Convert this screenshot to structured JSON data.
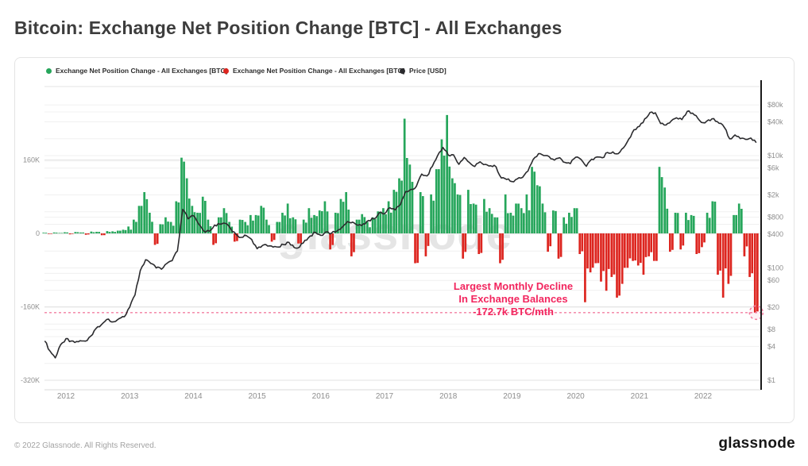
{
  "header": {
    "title": "Bitcoin: Exchange Net Position Change [BTC] - All Exchanges"
  },
  "legend": {
    "inflow_label": "Exchange Net Position Change - All Exchanges [BTC]",
    "outflow_label": "Exchange Net Position Change - All Exchanges [BTC]",
    "price_label": "Price [USD]",
    "inflow_color": "#26a65b",
    "outflow_color": "#dd251f",
    "price_color": "#2b2b2e"
  },
  "watermark": {
    "text": "glassnode"
  },
  "annotation": {
    "line1": "Largest Monthly Decline",
    "line2": "In Exchange Balances",
    "line3": "-172.7k BTC/mth",
    "color": "#f2255e",
    "dash_color": "#f37fa1",
    "highlight_value_k": -172.7
  },
  "footer": {
    "copyright": "© 2022 Glassnode. All Rights Reserved.",
    "logo_text": "glassnode"
  },
  "chart_data": {
    "type": "bar+line",
    "title": "Bitcoin: Exchange Net Position Change [BTC] - All Exchanges",
    "x_start": {
      "year": 2011,
      "month": 9
    },
    "resolution": "monthly",
    "x_axis": {
      "years": [
        2012,
        2013,
        2014,
        2015,
        2016,
        2017,
        2018,
        2019,
        2020,
        2021,
        2022
      ]
    },
    "left_axis": {
      "title": "Exchange Net Position Change [BTC]",
      "unit": "thousand BTC per month",
      "ticks": [
        {
          "label": "160K",
          "value": 160
        },
        {
          "label": "0",
          "value": 0
        },
        {
          "label": "-160K",
          "value": -160
        },
        {
          "label": "-320K",
          "value": -320
        }
      ],
      "grid_values_k": [
        320,
        160,
        0,
        -160,
        -320
      ]
    },
    "right_axis": {
      "title": "Price [USD]",
      "scale": "log",
      "ticks": [
        {
          "label": "$80k",
          "value": 80000
        },
        {
          "label": "$40k",
          "value": 40000
        },
        {
          "label": "$10k",
          "value": 10000
        },
        {
          "label": "$6k",
          "value": 6000
        },
        {
          "label": "$2k",
          "value": 2000
        },
        {
          "label": "$800",
          "value": 800
        },
        {
          "label": "$400",
          "value": 400
        },
        {
          "label": "$100",
          "value": 100
        },
        {
          "label": "$60",
          "value": 60
        },
        {
          "label": "$20",
          "value": 20
        },
        {
          "label": "$8",
          "value": 8
        },
        {
          "label": "$4",
          "value": 4
        },
        {
          "label": "$1",
          "value": 1
        }
      ],
      "grid_values_usd": [
        1,
        2,
        4,
        6,
        8,
        10,
        20,
        40,
        60,
        80,
        100,
        200,
        400,
        600,
        800,
        1000,
        2000,
        4000,
        6000,
        8000,
        10000,
        20000,
        40000,
        60000,
        80000
      ]
    },
    "series": [
      {
        "name": "Exchange Net Position Change - All Exchanges [BTC]",
        "kind": "bar",
        "unit": "thousand BTC",
        "color_positive": "#26a65b",
        "color_negative": "#dd251f",
        "values_k": [
          1.5,
          -1.2,
          2,
          1,
          2.5,
          -2,
          3,
          2,
          -3,
          4,
          3.5,
          -4,
          5,
          4.5,
          6,
          8,
          15,
          30,
          60,
          90,
          45,
          -25,
          20,
          35,
          25,
          70,
          165,
          120,
          60,
          45,
          80,
          30,
          -25,
          35,
          55,
          25,
          -18,
          30,
          25,
          40,
          40,
          60,
          30,
          -18,
          25,
          45,
          65,
          35,
          -22,
          30,
          55,
          40,
          50,
          70,
          -35,
          45,
          75,
          90,
          -50,
          30,
          42,
          25,
          35,
          48,
          55,
          70,
          95,
          120,
          250,
          150,
          -65,
          90,
          -50,
          85,
          140,
          205,
          258,
          120,
          85,
          -55,
          95,
          65,
          -45,
          75,
          55,
          35,
          -65,
          85,
          45,
          65,
          55,
          85,
          145,
          105,
          65,
          -40,
          50,
          -55,
          35,
          45,
          55,
          -45,
          -150,
          -85,
          -65,
          -105,
          -125,
          -95,
          -140,
          -110,
          -75,
          -60,
          -70,
          -90,
          -50,
          -60,
          145,
          100,
          -40,
          45,
          -35,
          45,
          40,
          -45,
          -30,
          45,
          70,
          -90,
          -140,
          -110,
          40,
          65,
          -50,
          -95,
          -172.7
        ]
      },
      {
        "name": "Price [USD]",
        "kind": "line",
        "unit": "USD",
        "color": "#2b2b2e",
        "values_usd": [
          5,
          3.3,
          2.5,
          4.3,
          5.5,
          5,
          4.9,
          5,
          5.1,
          6.5,
          9,
          10.5,
          12.3,
          11,
          12.5,
          13.5,
          20,
          33,
          90,
          140,
          120,
          100,
          95,
          120,
          135,
          200,
          1100,
          750,
          850,
          600,
          450,
          450,
          580,
          600,
          620,
          500,
          400,
          350,
          375,
          320,
          220,
          250,
          245,
          235,
          235,
          260,
          285,
          230,
          235,
          310,
          370,
          430,
          380,
          440,
          415,
          450,
          530,
          670,
          655,
          575,
          610,
          700,
          745,
          960,
          920,
          1180,
          1080,
          1350,
          2300,
          2500,
          2850,
          4700,
          4350,
          6450,
          10000,
          14000,
          10200,
          10300,
          7000,
          9250,
          7500,
          6400,
          7750,
          7000,
          6600,
          6300,
          4000,
          3750,
          3450,
          3850,
          4100,
          5300,
          8550,
          10800,
          10000,
          9600,
          8300,
          9150,
          7550,
          7200,
          9350,
          8550,
          6450,
          8650,
          9450,
          9150,
          11350,
          11650,
          10800,
          13800,
          19700,
          29000,
          33100,
          45100,
          58800,
          57750,
          37300,
          35000,
          41600,
          47150,
          43800,
          61300,
          57000,
          46200,
          38500,
          43200,
          45500,
          37650,
          31800,
          19950,
          23300,
          20050,
          19400,
          20500,
          17000
        ]
      }
    ],
    "annotation": {
      "text": "Largest Monthly Decline In Exchange Balances -172.7k BTC/mth",
      "value_k": -172.7
    }
  }
}
